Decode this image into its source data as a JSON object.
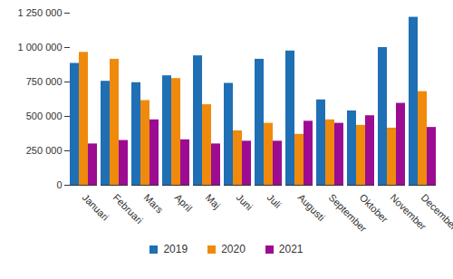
{
  "chart_data": {
    "type": "bar",
    "categories": [
      "Januari",
      "Februari",
      "Mars",
      "April",
      "Maj",
      "Juni",
      "Juli",
      "Augusti",
      "September",
      "Oktober",
      "November",
      "December"
    ],
    "series": [
      {
        "name": "2019",
        "color": "#1f6fb4",
        "values": [
          885000,
          755000,
          745000,
          795000,
          940000,
          740000,
          915000,
          975000,
          620000,
          540000,
          1000000,
          1220000
        ]
      },
      {
        "name": "2020",
        "color": "#f08a0c",
        "values": [
          965000,
          915000,
          615000,
          775000,
          585000,
          395000,
          450000,
          370000,
          475000,
          435000,
          415000,
          680000
        ]
      },
      {
        "name": "2021",
        "color": "#9c0c92",
        "values": [
          300000,
          325000,
          475000,
          330000,
          300000,
          320000,
          320000,
          465000,
          450000,
          505000,
          595000,
          420000
        ]
      }
    ],
    "ylim": [
      0,
      1250000
    ],
    "yticks": [
      0,
      {
        "value": 250000,
        "label": "250 000"
      },
      {
        "value": 500000,
        "label": "500 000"
      },
      {
        "value": 750000,
        "label": "750 000"
      },
      {
        "value": 1000000,
        "label": "1 000 000"
      },
      {
        "value": 1250000,
        "label": "1 250 000"
      }
    ],
    "grid": false,
    "legend": "bottom"
  }
}
